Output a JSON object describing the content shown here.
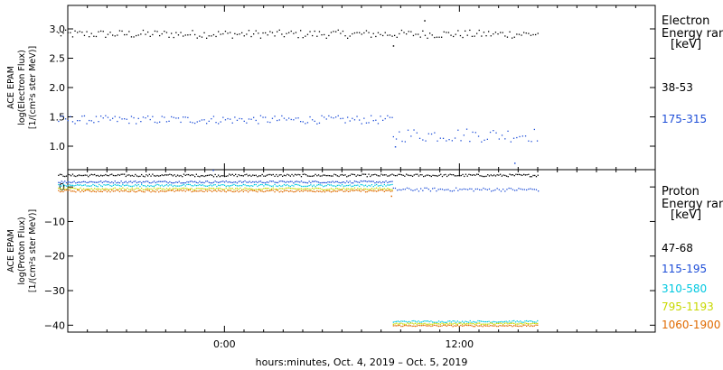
{
  "chart_data": [
    {
      "type": "scatter",
      "panel": "electron",
      "ylabel_lines": [
        "ACE EPAM",
        "log(Electron Flux)",
        "[1/(cm²s ster MeV)]"
      ],
      "ylim": [
        0.6,
        3.4
      ],
      "yticks": [
        1.0,
        1.5,
        2.0,
        2.5,
        3.0
      ],
      "ytick_labels": [
        "1.0",
        "1.5",
        "2.0",
        "2.5",
        "3.0"
      ],
      "legend_title_lines": [
        "Electron",
        "Energy ran",
        "[keV]"
      ],
      "series": [
        {
          "name": "38-53",
          "color": "#000000",
          "segments": [
            {
              "t0": -8.5,
              "t1": 16.0,
              "mean": 2.92,
              "amp": 0.07,
              "step": 0.12
            }
          ],
          "spikes": [
            [
              10.2,
              3.15
            ],
            [
              8.6,
              2.72
            ]
          ]
        },
        {
          "name": "175-315",
          "color": "#1f4fd8",
          "segments": [
            {
              "t0": -8.5,
              "t1": 8.6,
              "mean": 1.46,
              "amp": 0.07,
              "step": 0.12
            },
            {
              "t0": 8.6,
              "t1": 16.0,
              "mean": 1.2,
              "amp": 0.12,
              "step": 0.15
            }
          ],
          "spikes": [
            [
              14.8,
              0.72
            ],
            [
              8.7,
              1.0
            ]
          ]
        }
      ]
    },
    {
      "type": "scatter",
      "panel": "proton",
      "ylabel_lines": [
        "ACE EPAM",
        "log(Proton Flux)",
        "[1/(cm²s ster MeV)]"
      ],
      "ylim": [
        -42,
        5
      ],
      "yticks": [
        0,
        -10,
        -20,
        -30,
        -40
      ],
      "ytick_labels": [
        "0",
        "−10",
        "−20",
        "−30",
        "−40"
      ],
      "legend_title_lines": [
        "Proton",
        "Energy ran",
        "[keV]"
      ],
      "series": [
        {
          "name": "47-68",
          "color": "#000000",
          "segments": [
            {
              "t0": -8.5,
              "t1": 16.0,
              "mean": 3.5,
              "amp": 0.35,
              "step": 0.08
            }
          ],
          "spikes": []
        },
        {
          "name": "115-195",
          "color": "#1f4fd8",
          "segments": [
            {
              "t0": -8.5,
              "t1": 8.6,
              "mean": 1.6,
              "amp": 0.3,
              "step": 0.08
            },
            {
              "t0": 8.6,
              "t1": 16.0,
              "mean": -0.6,
              "amp": 0.5,
              "step": 0.1
            }
          ],
          "spikes": [
            [
              -0.6,
              5.0
            ]
          ]
        },
        {
          "name": "310-580",
          "color": "#00c8e0",
          "segments": [
            {
              "t0": -8.5,
              "t1": 8.6,
              "mean": 0.6,
              "amp": 0.3,
              "step": 0.08
            },
            {
              "t0": 8.6,
              "t1": 16.0,
              "mean": -38.8,
              "amp": 0.25,
              "step": 0.08
            }
          ],
          "spikes": []
        },
        {
          "name": "795-1193",
          "color": "#c8d800",
          "segments": [
            {
              "t0": -8.5,
              "t1": 8.6,
              "mean": -0.4,
              "amp": 0.3,
              "step": 0.08
            },
            {
              "t0": 8.6,
              "t1": 16.0,
              "mean": -39.4,
              "amp": 0.2,
              "step": 0.08
            }
          ],
          "spikes": []
        },
        {
          "name": "1060-1900",
          "color": "#e06a00",
          "segments": [
            {
              "t0": -8.5,
              "t1": 8.6,
              "mean": -1.0,
              "amp": 0.3,
              "step": 0.08
            },
            {
              "t0": 8.6,
              "t1": 16.0,
              "mean": -40.0,
              "amp": 0.2,
              "step": 0.08
            }
          ],
          "spikes": [
            [
              8.5,
              -2.5
            ]
          ]
        }
      ]
    }
  ],
  "x_axis": {
    "xlim": [
      -8.0,
      22.0
    ],
    "major_ticks": [
      0,
      12
    ],
    "major_labels": [
      "0:00",
      "12:00"
    ],
    "title": "hours:minutes, Oct.  4, 2019 – Oct.  5, 2019"
  }
}
